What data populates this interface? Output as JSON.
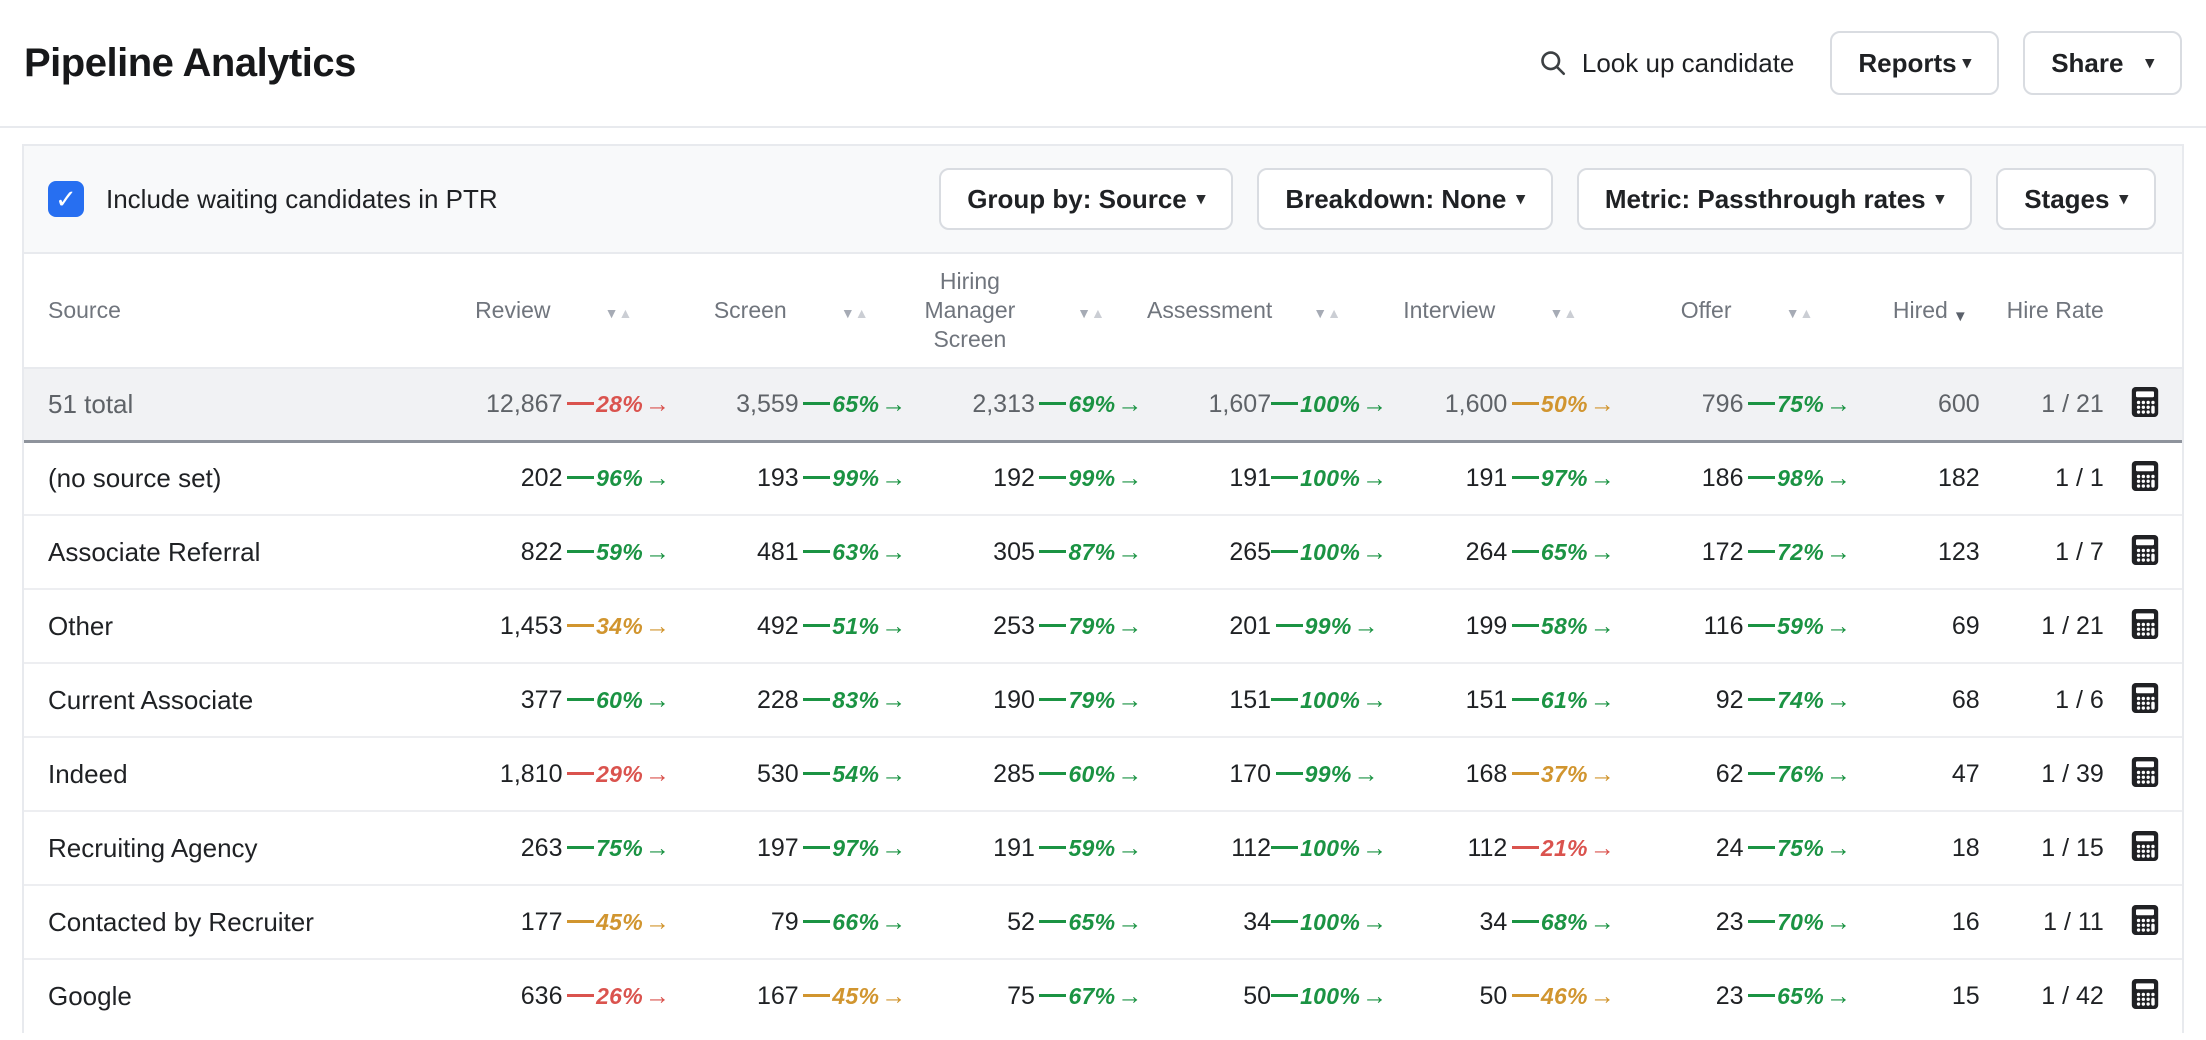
{
  "page_title": "Pipeline Analytics",
  "topbar": {
    "search_label": "Look up candidate",
    "reports_button": "Reports",
    "share_button": "Share"
  },
  "controls": {
    "checkbox_label": "Include waiting candidates in PTR",
    "checkbox_checked": true,
    "group_by_button": "Group by: Source",
    "breakdown_button": "Breakdown: None",
    "metric_button": "Metric: Passthrough rates",
    "stages_button": "Stages"
  },
  "icons": {
    "search": "magnifier",
    "calculator": "calculator",
    "sort_desc": "▼",
    "sort_asc": "▲",
    "caret_down": "▾",
    "check": "✓"
  },
  "colors": {
    "good": "#1b9343",
    "warn": "#d1952f",
    "bad": "#da534e",
    "checkbox_blue": "#276ff1",
    "total_row_bg": "#f1f2f4"
  },
  "table": {
    "headers": {
      "source": "Source",
      "stages": [
        "Review",
        "Screen",
        "Hiring Manager Screen",
        "Assessment",
        "Interview",
        "Offer"
      ],
      "hired": "Hired",
      "hire_rate": "Hire Rate"
    },
    "sort": {
      "column": "Hired",
      "direction": "desc"
    },
    "total_row": {
      "label": "51 total",
      "counts": [
        "12,867",
        "3,559",
        "2,313",
        "1,607",
        "1,600",
        "796",
        "600"
      ],
      "ptrs": [
        {
          "value": "28%",
          "color": "bad"
        },
        {
          "value": "65%",
          "color": "good"
        },
        {
          "value": "69%",
          "color": "good"
        },
        {
          "value": "100%",
          "color": "good"
        },
        {
          "value": "50%",
          "color": "warn"
        },
        {
          "value": "75%",
          "color": "good"
        }
      ],
      "hire_rate": "1 / 21"
    },
    "rows": [
      {
        "label": "(no source set)",
        "counts": [
          "202",
          "193",
          "192",
          "191",
          "191",
          "186",
          "182"
        ],
        "ptrs": [
          {
            "value": "96%",
            "color": "good"
          },
          {
            "value": "99%",
            "color": "good"
          },
          {
            "value": "99%",
            "color": "good"
          },
          {
            "value": "100%",
            "color": "good"
          },
          {
            "value": "97%",
            "color": "good"
          },
          {
            "value": "98%",
            "color": "good"
          }
        ],
        "hire_rate": "1 / 1"
      },
      {
        "label": "Associate Referral",
        "counts": [
          "822",
          "481",
          "305",
          "265",
          "264",
          "172",
          "123"
        ],
        "ptrs": [
          {
            "value": "59%",
            "color": "good"
          },
          {
            "value": "63%",
            "color": "good"
          },
          {
            "value": "87%",
            "color": "good"
          },
          {
            "value": "100%",
            "color": "good"
          },
          {
            "value": "65%",
            "color": "good"
          },
          {
            "value": "72%",
            "color": "good"
          }
        ],
        "hire_rate": "1 / 7"
      },
      {
        "label": "Other",
        "counts": [
          "1,453",
          "492",
          "253",
          "201",
          "199",
          "116",
          "69"
        ],
        "ptrs": [
          {
            "value": "34%",
            "color": "warn"
          },
          {
            "value": "51%",
            "color": "good"
          },
          {
            "value": "79%",
            "color": "good"
          },
          {
            "value": "99%",
            "color": "good"
          },
          {
            "value": "58%",
            "color": "good"
          },
          {
            "value": "59%",
            "color": "good"
          }
        ],
        "hire_rate": "1 / 21"
      },
      {
        "label": "Current Associate",
        "counts": [
          "377",
          "228",
          "190",
          "151",
          "151",
          "92",
          "68"
        ],
        "ptrs": [
          {
            "value": "60%",
            "color": "good"
          },
          {
            "value": "83%",
            "color": "good"
          },
          {
            "value": "79%",
            "color": "good"
          },
          {
            "value": "100%",
            "color": "good"
          },
          {
            "value": "61%",
            "color": "good"
          },
          {
            "value": "74%",
            "color": "good"
          }
        ],
        "hire_rate": "1 / 6"
      },
      {
        "label": "Indeed",
        "counts": [
          "1,810",
          "530",
          "285",
          "170",
          "168",
          "62",
          "47"
        ],
        "ptrs": [
          {
            "value": "29%",
            "color": "bad"
          },
          {
            "value": "54%",
            "color": "good"
          },
          {
            "value": "60%",
            "color": "good"
          },
          {
            "value": "99%",
            "color": "good"
          },
          {
            "value": "37%",
            "color": "warn"
          },
          {
            "value": "76%",
            "color": "good"
          }
        ],
        "hire_rate": "1 / 39"
      },
      {
        "label": "Recruiting Agency",
        "counts": [
          "263",
          "197",
          "191",
          "112",
          "112",
          "24",
          "18"
        ],
        "ptrs": [
          {
            "value": "75%",
            "color": "good"
          },
          {
            "value": "97%",
            "color": "good"
          },
          {
            "value": "59%",
            "color": "good"
          },
          {
            "value": "100%",
            "color": "good"
          },
          {
            "value": "21%",
            "color": "bad"
          },
          {
            "value": "75%",
            "color": "good"
          }
        ],
        "hire_rate": "1 / 15"
      },
      {
        "label": "Contacted by Recruiter",
        "counts": [
          "177",
          "79",
          "52",
          "34",
          "34",
          "23",
          "16"
        ],
        "ptrs": [
          {
            "value": "45%",
            "color": "warn"
          },
          {
            "value": "66%",
            "color": "good"
          },
          {
            "value": "65%",
            "color": "good"
          },
          {
            "value": "100%",
            "color": "good"
          },
          {
            "value": "68%",
            "color": "good"
          },
          {
            "value": "70%",
            "color": "good"
          }
        ],
        "hire_rate": "1 / 11"
      },
      {
        "label": "Google",
        "counts": [
          "636",
          "167",
          "75",
          "50",
          "50",
          "23",
          "15"
        ],
        "ptrs": [
          {
            "value": "26%",
            "color": "bad"
          },
          {
            "value": "45%",
            "color": "warn"
          },
          {
            "value": "67%",
            "color": "good"
          },
          {
            "value": "100%",
            "color": "good"
          },
          {
            "value": "46%",
            "color": "warn"
          },
          {
            "value": "65%",
            "color": "good"
          }
        ],
        "hire_rate": "1 / 42"
      }
    ]
  }
}
